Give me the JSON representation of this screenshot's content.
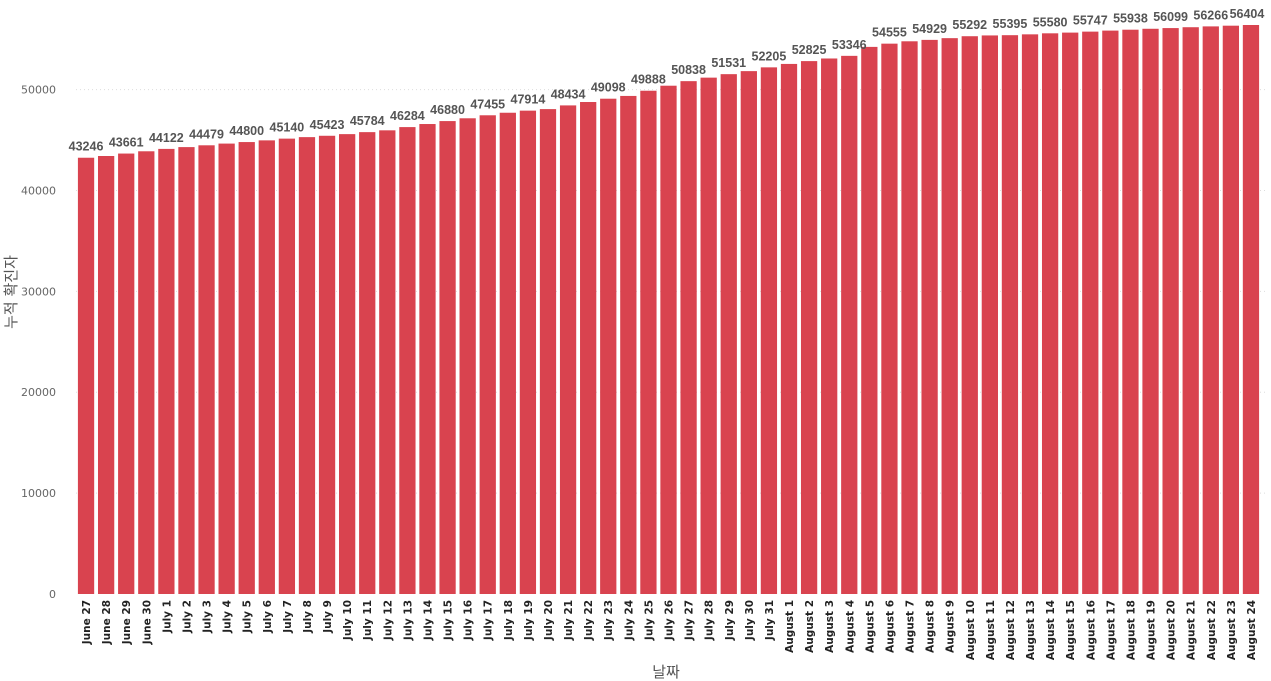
{
  "chart_data": {
    "type": "bar",
    "title": "",
    "xlabel": "날짜",
    "ylabel": "누적 확진자",
    "ylim": [
      0,
      56404
    ],
    "yticks": [
      0,
      10000,
      20000,
      30000,
      40000,
      50000
    ],
    "grid": true,
    "bar_color": "#D9434F",
    "categories": [
      "June 27",
      "June 28",
      "June 29",
      "June 30",
      "July 1",
      "July 2",
      "July 3",
      "July 4",
      "July 5",
      "July 6",
      "July 7",
      "July 8",
      "July 9",
      "July 10",
      "July 11",
      "July 12",
      "July 13",
      "July 14",
      "July 15",
      "July 16",
      "July 17",
      "July 18",
      "July 19",
      "July 20",
      "July 21",
      "July 22",
      "July 23",
      "July 24",
      "July 25",
      "July 26",
      "July 27",
      "July 28",
      "July 29",
      "July 30",
      "July 31",
      "August 1",
      "August 2",
      "August 3",
      "August 4",
      "August 5",
      "August 6",
      "August 7",
      "August 8",
      "August 9",
      "August 10",
      "August 11",
      "August 12",
      "August 13",
      "August 14",
      "August 15",
      "August 16",
      "August 17",
      "August 18",
      "August 19",
      "August 20",
      "August 21",
      "August 22",
      "August 23",
      "August 24"
    ],
    "values": [
      43246,
      43418,
      43661,
      43886,
      44122,
      44300,
      44479,
      44649,
      44800,
      44968,
      45140,
      45289,
      45423,
      45587,
      45784,
      45963,
      46284,
      46588,
      46880,
      47157,
      47455,
      47706,
      47914,
      48067,
      48434,
      48770,
      49098,
      49372,
      49888,
      50386,
      50838,
      51186,
      51531,
      51832,
      52205,
      52545,
      52825,
      53085,
      53346,
      54234,
      54555,
      54789,
      54929,
      55100,
      55292,
      55370,
      55395,
      55478,
      55580,
      55650,
      55747,
      55849,
      55938,
      56030,
      56099,
      56184,
      56266,
      56336,
      56404
    ],
    "data_labels": {
      "0": "43246",
      "2": "43661",
      "4": "44122",
      "6": "44479",
      "8": "44800",
      "10": "45140",
      "12": "45423",
      "14": "45784",
      "16": "46284",
      "18": "46880",
      "20": "47455",
      "22": "47914",
      "24": "48434",
      "26": "49098",
      "28": "49888",
      "30": "50838",
      "32": "51531",
      "34": "52205",
      "36": "52825",
      "38": "53346",
      "40": "54555",
      "42": "54929",
      "44": "55292",
      "46": "55395",
      "48": "55580",
      "50": "55747",
      "52": "55938",
      "54": "56099",
      "56": "56266",
      "58": "56404"
    }
  }
}
